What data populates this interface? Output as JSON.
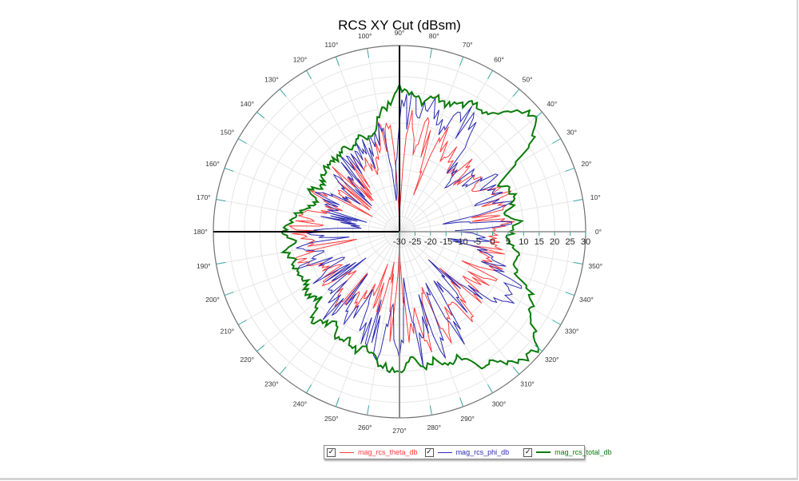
{
  "chart_data": {
    "type": "polar-line",
    "title": "RCS XY Cut (dBsm)",
    "radial_axis": {
      "min": -30,
      "max": 30,
      "ticks": [
        -30,
        -25,
        -20,
        -15,
        -10,
        -5,
        0,
        5,
        10,
        15,
        20,
        25,
        30
      ],
      "tick_labels": [
        "-30",
        "-25",
        "-20",
        "-15",
        "-10",
        "-5",
        "0",
        "5",
        "10",
        "15",
        "20",
        "25",
        "30"
      ]
    },
    "angular_axis": {
      "unit": "deg",
      "step": 10,
      "labels": [
        "0°",
        "10°",
        "20°",
        "30°",
        "40°",
        "50°",
        "60°",
        "70°",
        "80°",
        "90°",
        "100°",
        "110°",
        "120°",
        "130°",
        "140°",
        "150°",
        "160°",
        "170°",
        "180°",
        "190°",
        "200°",
        "210°",
        "220°",
        "230°",
        "240°",
        "250°",
        "260°",
        "270°",
        "280°",
        "290°",
        "300°",
        "310°",
        "320°",
        "330°",
        "340°",
        "350°"
      ]
    },
    "grid": true,
    "legend_position": "bottom",
    "angles": [
      0,
      5,
      10,
      15,
      20,
      25,
      30,
      35,
      40,
      45,
      50,
      55,
      60,
      65,
      70,
      75,
      80,
      85,
      90,
      95,
      100,
      105,
      110,
      115,
      120,
      125,
      130,
      135,
      140,
      145,
      150,
      155,
      160,
      165,
      170,
      175,
      180,
      185,
      190,
      195,
      200,
      205,
      210,
      215,
      220,
      225,
      230,
      235,
      240,
      245,
      250,
      255,
      260,
      265,
      270,
      275,
      280,
      285,
      290,
      295,
      300,
      305,
      310,
      315,
      320,
      325,
      330,
      335,
      340,
      345,
      350,
      355
    ],
    "series": [
      {
        "name": "mag_rcs_theta_db",
        "color": "#ff3b3b",
        "width": 1,
        "values": [
          2,
          5,
          3,
          4,
          6,
          4,
          -2,
          2,
          -6,
          1,
          -8,
          3,
          -4,
          6,
          -10,
          8,
          -2,
          10,
          -30,
          2,
          4,
          -3,
          -12,
          -1,
          -6,
          -3,
          -14,
          -2,
          -8,
          -5,
          -10,
          0,
          -6,
          -4,
          0,
          2,
          4,
          0,
          -2,
          3,
          1,
          -1,
          -6,
          0,
          -9,
          -3,
          1,
          -5,
          -4,
          -12,
          -8,
          -2,
          -18,
          4,
          -30,
          6,
          -4,
          8,
          -10,
          10,
          2,
          -2,
          6,
          -6,
          4,
          -4,
          2,
          3,
          4,
          1,
          3,
          0
        ]
      },
      {
        "name": "mag_rcs_phi_db",
        "color": "#2b2bb0",
        "width": 1,
        "values": [
          -8,
          6,
          -15,
          8,
          6,
          4,
          10,
          -5,
          2,
          -10,
          0,
          12,
          14,
          10,
          6,
          14,
          9,
          13,
          14,
          -20,
          6,
          -2,
          2,
          0,
          -3,
          -1,
          0,
          -12,
          -2,
          -15,
          -4,
          -3,
          -6,
          -8,
          -5,
          -20,
          5,
          -8,
          5,
          -3,
          3,
          -10,
          2,
          -6,
          0,
          2,
          5,
          -4,
          6,
          -8,
          9,
          4,
          10,
          -6,
          14,
          -15,
          13,
          -2,
          14,
          -10,
          10,
          -5,
          4,
          -12,
          3,
          8,
          14,
          12,
          6,
          4,
          -10,
          -2
        ]
      },
      {
        "name": "mag_rcs_total_db",
        "color": "#0a7a0a",
        "width": 2,
        "values": [
          6,
          8.6,
          4.8,
          8.6,
          8.6,
          6,
          12.5,
          22.8,
          28,
          25,
          20,
          16,
          17.6,
          15,
          13.8,
          15,
          12.5,
          15,
          16.4,
          11,
          8.6,
          2,
          2,
          3,
          1,
          2,
          1,
          2,
          1,
          0.4,
          -1.7,
          2,
          -1.7,
          -0.4,
          3.5,
          4.8,
          7.3,
          3.5,
          7.3,
          4.8,
          6,
          3.5,
          4.8,
          6,
          3.5,
          10,
          8.6,
          6,
          10,
          8.6,
          11,
          8.6,
          12.5,
          13.8,
          15.8,
          11,
          15,
          12.5,
          16.4,
          13.8,
          20,
          21.5,
          25.4,
          28,
          28,
          22.8,
          19,
          16.4,
          10,
          7.3,
          8.6,
          4.8
        ]
      }
    ]
  },
  "legend": {
    "items": [
      {
        "label": "mag_rcs_theta_db",
        "color": "#ff3b3b",
        "checked": true,
        "check_glyph": "✓"
      },
      {
        "label": "mag_rcs_phi_db",
        "color": "#2b2bb0",
        "checked": true,
        "check_glyph": "✓"
      },
      {
        "label": "mag_rcs_total_db",
        "color": "#0a7a0a",
        "checked": true,
        "check_glyph": "✓"
      }
    ]
  },
  "colors": {
    "axis_dark": "#000000",
    "axis_gray": "#8c8c8c",
    "outer_ring": "#707070",
    "grid": "#e6e6e6",
    "tick": "#3aa6a6"
  }
}
